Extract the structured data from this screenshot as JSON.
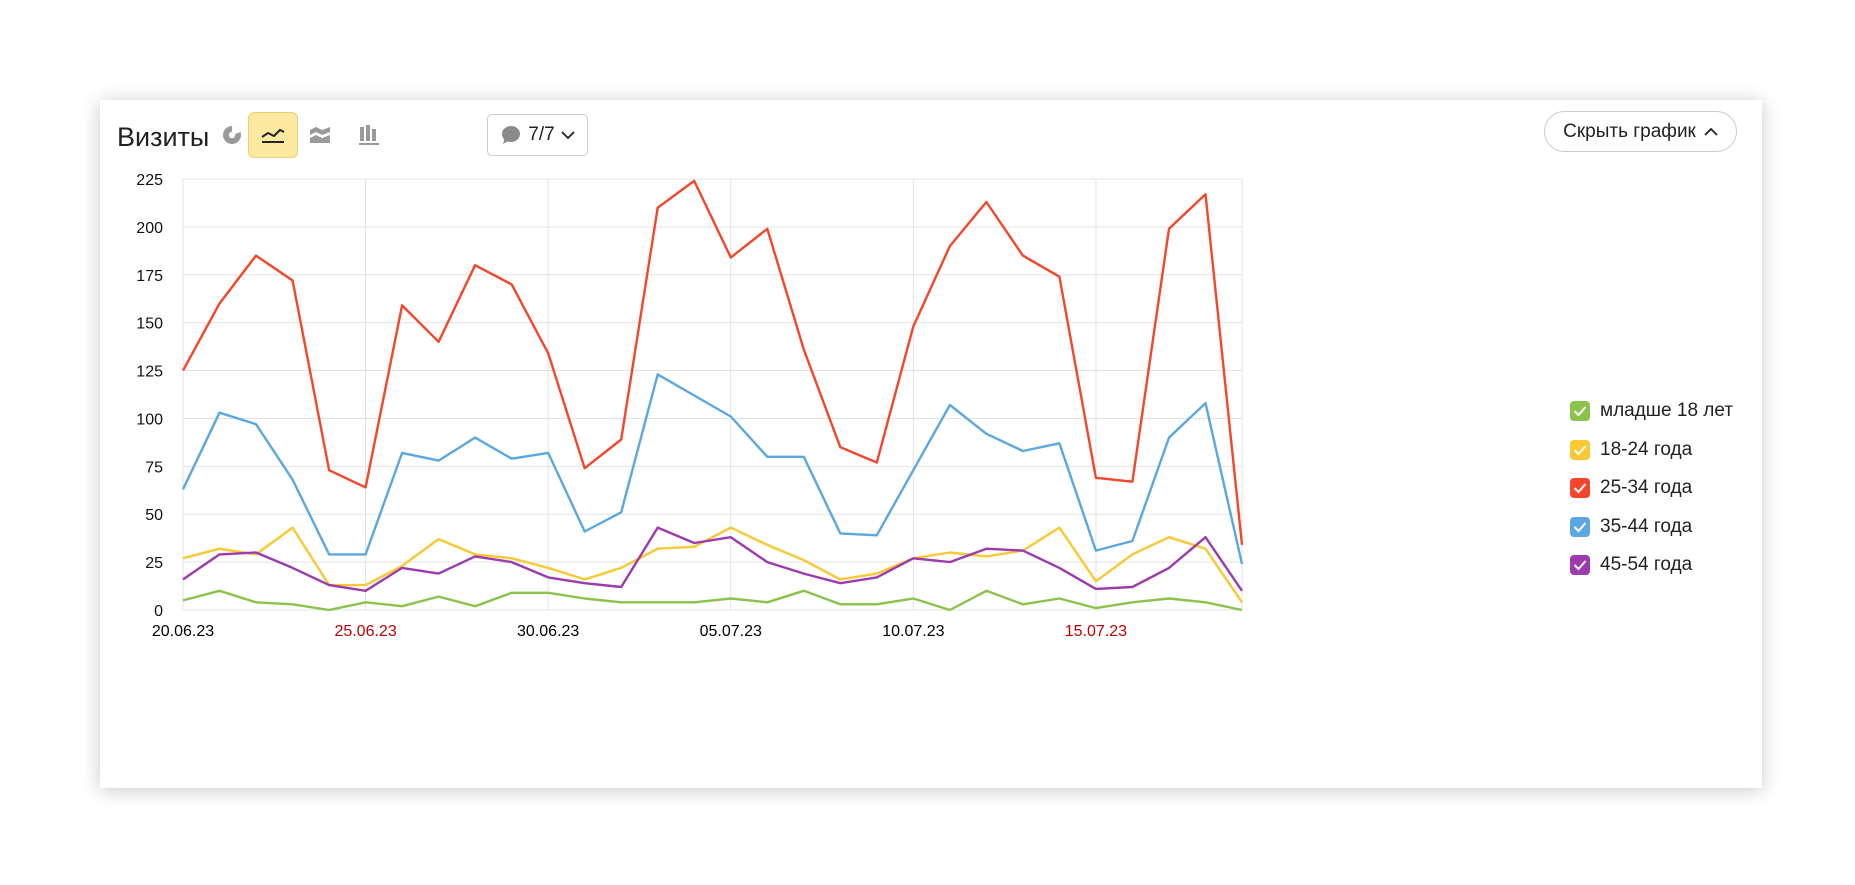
{
  "header": {
    "title": "Визиты",
    "comments_label": "7/7",
    "hide_chart_label": "Скрыть график"
  },
  "legend": [
    {
      "label": "младше 18 лет",
      "color": "#8bc34a"
    },
    {
      "label": "18-24 года",
      "color": "#f9c833"
    },
    {
      "label": "25-34 года",
      "color": "#f4462a"
    },
    {
      "label": "35-44 года",
      "color": "#5ba7e2"
    },
    {
      "label": "45-54 года",
      "color": "#9b3bad"
    }
  ],
  "chart_data": {
    "type": "line",
    "ylim": [
      0,
      225
    ],
    "yticks": [
      0,
      25,
      50,
      75,
      100,
      125,
      150,
      175,
      200,
      225
    ],
    "grid": true,
    "legend_position": "right",
    "x": [
      "20.06.23",
      "21.06.23",
      "22.06.23",
      "23.06.23",
      "24.06.23",
      "25.06.23",
      "26.06.23",
      "27.06.23",
      "28.06.23",
      "29.06.23",
      "30.06.23",
      "01.07.23",
      "02.07.23",
      "03.07.23",
      "04.07.23",
      "05.07.23",
      "06.07.23",
      "07.07.23",
      "08.07.23",
      "09.07.23",
      "10.07.23",
      "11.07.23",
      "12.07.23",
      "13.07.23",
      "14.07.23",
      "15.07.23",
      "16.07.23",
      "17.07.23",
      "18.07.23",
      "19.07.23"
    ],
    "xtick_labels": [
      {
        "index": 0,
        "label": "20.06.23",
        "color": "#000000"
      },
      {
        "index": 5,
        "label": "25.06.23",
        "color": "#c00000"
      },
      {
        "index": 10,
        "label": "30.06.23",
        "color": "#000000"
      },
      {
        "index": 15,
        "label": "05.07.23",
        "color": "#000000"
      },
      {
        "index": 20,
        "label": "10.07.23",
        "color": "#000000"
      },
      {
        "index": 25,
        "label": "15.07.23",
        "color": "#c00000"
      }
    ],
    "series": [
      {
        "name": "младше 18 лет",
        "color": "#8bc34a",
        "values": [
          5,
          10,
          4,
          3,
          0,
          4,
          2,
          7,
          2,
          9,
          9,
          6,
          4,
          4,
          4,
          6,
          4,
          10,
          3,
          3,
          6,
          0,
          10,
          3,
          6,
          1,
          4,
          6,
          4,
          0
        ]
      },
      {
        "name": "18-24 года",
        "color": "#f9c833",
        "values": [
          27,
          32,
          29,
          43,
          13,
          13,
          23,
          37,
          29,
          27,
          22,
          16,
          22,
          32,
          33,
          43,
          34,
          26,
          16,
          19,
          27,
          30,
          28,
          31,
          43,
          15,
          29,
          38,
          32,
          4
        ]
      },
      {
        "name": "25-34 года",
        "color": "#f4462a",
        "values": [
          125,
          160,
          185,
          172,
          73,
          64,
          159,
          140,
          180,
          170,
          134,
          74,
          89,
          210,
          224,
          184,
          199,
          136,
          85,
          77,
          148,
          190,
          213,
          185,
          174,
          69,
          67,
          199,
          217,
          34
        ]
      },
      {
        "name": "35-44 года",
        "color": "#5ba7e2",
        "values": [
          63,
          103,
          97,
          68,
          29,
          29,
          82,
          78,
          90,
          79,
          82,
          41,
          51,
          123,
          112,
          101,
          80,
          80,
          40,
          39,
          73,
          107,
          92,
          83,
          87,
          31,
          36,
          90,
          108,
          24
        ]
      },
      {
        "name": "45-54 года",
        "color": "#9b3bad",
        "values": [
          16,
          29,
          30,
          22,
          13,
          10,
          22,
          19,
          28,
          25,
          17,
          14,
          12,
          43,
          35,
          38,
          25,
          19,
          14,
          17,
          27,
          25,
          32,
          31,
          22,
          11,
          12,
          22,
          38,
          10
        ]
      }
    ]
  }
}
